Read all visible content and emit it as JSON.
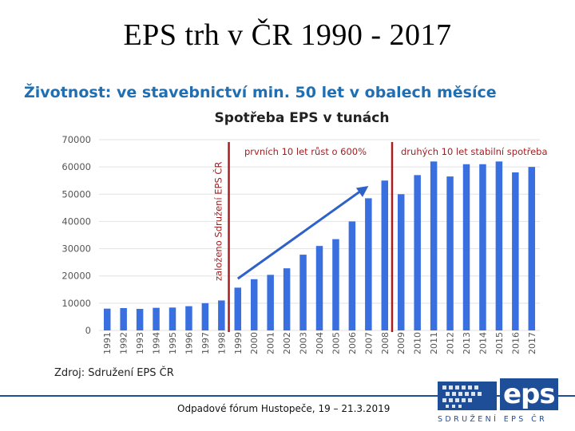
{
  "slide": {
    "title": "EPS trh v ČR 1990 - 2017",
    "subtitle": "Životnost: ve stavebnictví min. 50 let v obalech měsíce",
    "source": "Zdroj: Sdružení EPS ČR",
    "footer": "Odpadové fórum Hustopeče, 19 – 21.3.2019",
    "logo_text": "eps",
    "logo_tagline": "SDRUŽENÍ EPS ČR"
  },
  "colors": {
    "bar": "#3a6fe0",
    "marker": "#a41e22",
    "arrow": "#2e62c9",
    "annotation_text": "#a41e22",
    "grid": "#e2e2e2",
    "brand": "#1f4e99"
  },
  "chart_data": {
    "type": "bar",
    "title": "Spotřeba EPS v tunách",
    "xlabel": "",
    "ylabel": "",
    "ylim": [
      0,
      70000
    ],
    "yticks": [
      0,
      10000,
      20000,
      30000,
      40000,
      50000,
      60000,
      70000
    ],
    "grid": true,
    "categories": [
      "1991",
      "1992",
      "1993",
      "1994",
      "1995",
      "1996",
      "1997",
      "1998",
      "1999",
      "2000",
      "2001",
      "2002",
      "2003",
      "2004",
      "2005",
      "2006",
      "2007",
      "2008",
      "2009",
      "2010",
      "2011",
      "2012",
      "2013",
      "2014",
      "2015",
      "2016",
      "2017"
    ],
    "values": [
      8000,
      8200,
      7900,
      8300,
      8400,
      8900,
      10000,
      11000,
      15700,
      18800,
      20400,
      22800,
      27800,
      31000,
      33500,
      40000,
      48500,
      55000,
      50000,
      57000,
      62000,
      56500,
      61000,
      61000,
      62000,
      58000,
      60000
    ],
    "markers": [
      {
        "after_category": "1998",
        "label": "založeno Sdružení EPS ČR"
      },
      {
        "after_category": "2008",
        "label": ""
      }
    ],
    "annotations": [
      "prvních 10 let růst o 600%",
      "druhých 10 let stabilní spotřeba"
    ],
    "trend_arrow": {
      "from_category": "1999",
      "from_value": 19000,
      "to_category": "2007",
      "to_value": 53000
    }
  }
}
